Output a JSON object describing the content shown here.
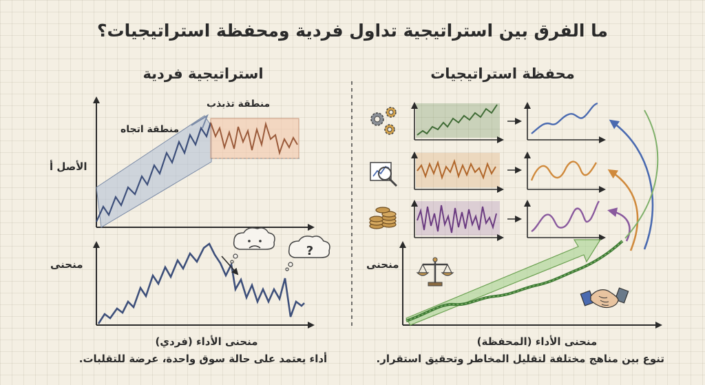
{
  "title": "ما الفرق بين استراتيجية تداول فردية ومحفظة استراتيجيات؟",
  "left_panel": {
    "title": "استراتيجية فردية",
    "sideways_zone_label": "منطقة تذبذب",
    "trend_zone_label": "منطقة اتجاه",
    "asset_label": "الأصل أ",
    "curve_label": "منحنى",
    "performance_label": "منحنى الأداء (فردي)",
    "caption": "أداء يعتمد على حالة سوق واحدة، عرضة للتقلبات."
  },
  "right_panel": {
    "title": "محفظة استراتيجيات",
    "curve_label": "منحنى",
    "performance_label": "منحنى الأداء (المحفظة)",
    "caption": "تنوع بين مناهج مختلفة لتقليل المخاطر وتحقيق استقرار."
  },
  "thought_bubble_symbol": "?",
  "colors": {
    "background": "#f4efe3",
    "ink": "#2a2a2a",
    "line_blue": "#4a6ab0",
    "strategy_green": "#5c8a4e",
    "strategy_orange": "#d08a3c",
    "strategy_purple": "#8a5a9e",
    "trend_band": "#aebdd6",
    "sideways_band": "#f2c7aa",
    "portfolio_arrow_green": "#7fb06a"
  },
  "icons": [
    "gears-icon",
    "magnifier-chart-icon",
    "coins-icon",
    "scale-icon",
    "handshake-icon",
    "sad-cloud-icon",
    "question-cloud-icon"
  ]
}
